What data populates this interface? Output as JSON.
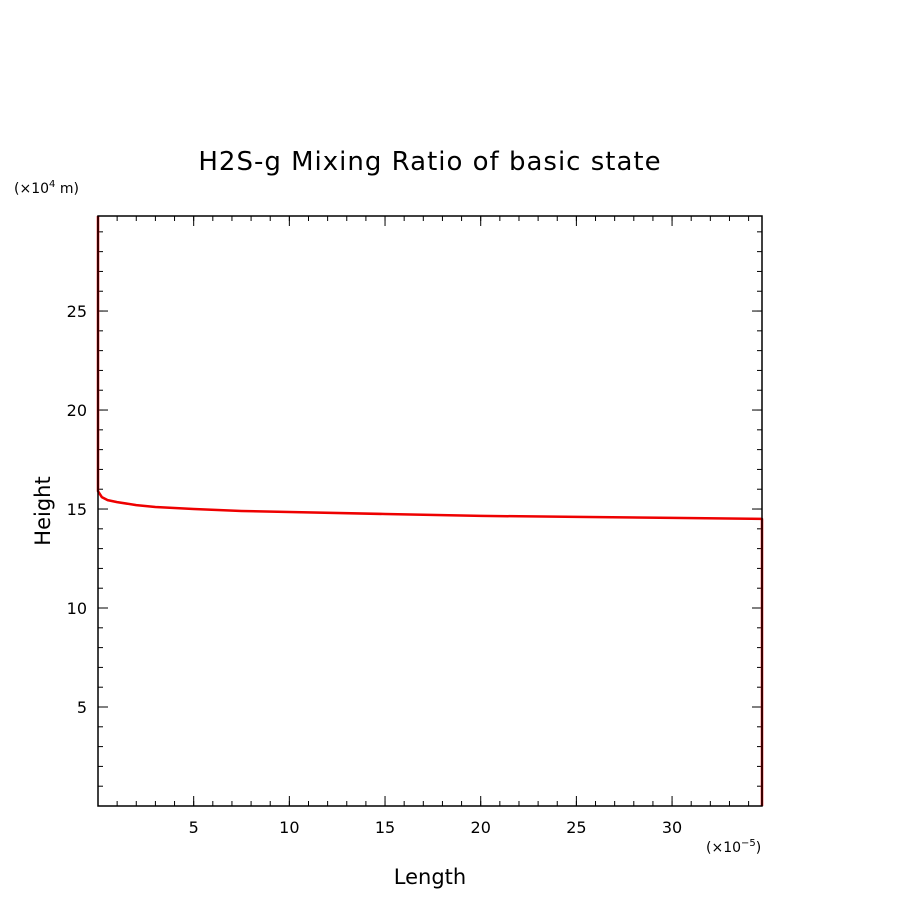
{
  "chart_data": {
    "type": "line",
    "title": "H2S-g Mixing Ratio of basic state",
    "xlabel": "Length",
    "ylabel": "Height",
    "x_multiplier": {
      "prefix": "(×10",
      "exponent": "−5",
      "suffix": ")"
    },
    "y_multiplier": {
      "prefix": "(×10",
      "exponent": "4",
      "suffix": " m)"
    },
    "xlim": [
      0,
      34.7
    ],
    "ylim": [
      0,
      29.8
    ],
    "x_ticks": [
      5,
      10,
      15,
      20,
      25,
      30
    ],
    "x_tick_labels": [
      "5",
      "10",
      "15",
      "20",
      "25",
      "30"
    ],
    "y_ticks": [
      5,
      10,
      15,
      20,
      25
    ],
    "y_tick_labels": [
      "5",
      "10",
      "15",
      "20",
      "25"
    ],
    "grid": false,
    "series": [
      {
        "color": "#ee0000",
        "x": [
          0.0,
          0.0,
          0.2,
          0.5,
          1.0,
          2.0,
          3.0,
          5.0,
          7.5,
          10.0,
          15.0,
          20.0,
          25.0,
          30.0,
          34.7,
          34.7
        ],
        "y": [
          29.8,
          15.9,
          15.6,
          15.45,
          15.35,
          15.2,
          15.1,
          15.0,
          14.9,
          14.85,
          14.75,
          14.65,
          14.6,
          14.55,
          14.5,
          0.0
        ]
      }
    ]
  }
}
